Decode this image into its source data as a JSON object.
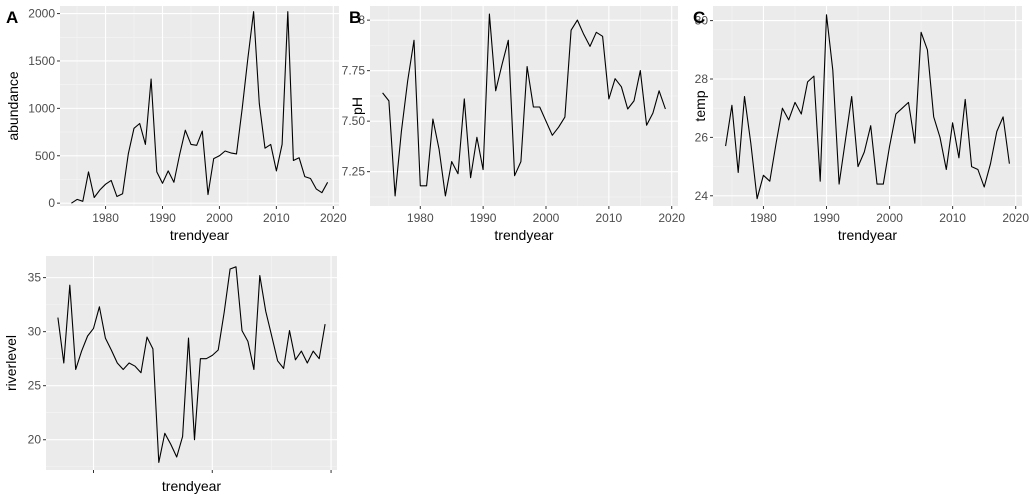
{
  "colors": {
    "panel_bg": "#ebebeb",
    "grid_major": "#ffffff",
    "grid_minor": "#f5f5f5",
    "line": "#000000",
    "tick": "#333333"
  },
  "chart_data": [
    {
      "type": "line",
      "tag": "A",
      "xlabel": "trendyear",
      "ylabel": "abundance",
      "xlim": [
        1972,
        2021
      ],
      "ylim": [
        -30,
        2080
      ],
      "grid": true,
      "xticks": [
        1980,
        1990,
        2000,
        2010,
        2020
      ],
      "yticks": [
        0,
        500,
        1000,
        1500,
        2000
      ],
      "x": [
        1974,
        1975,
        1976,
        1977,
        1978,
        1979,
        1980,
        1981,
        1982,
        1983,
        1984,
        1985,
        1986,
        1987,
        1988,
        1989,
        1990,
        1991,
        1992,
        1993,
        1994,
        1995,
        1996,
        1997,
        1998,
        1999,
        2000,
        2001,
        2002,
        2003,
        2004,
        2005,
        2006,
        2007,
        2008,
        2009,
        2010,
        2011,
        2012,
        2013,
        2014,
        2015,
        2016,
        2017,
        2018,
        2019
      ],
      "y": [
        0,
        40,
        20,
        330,
        60,
        140,
        200,
        240,
        70,
        100,
        520,
        790,
        840,
        620,
        1310,
        330,
        210,
        340,
        220,
        510,
        770,
        620,
        610,
        760,
        90,
        470,
        500,
        550,
        530,
        520,
        1000,
        1530,
        2020,
        1050,
        580,
        620,
        340,
        620,
        2020,
        450,
        480,
        280,
        260,
        150,
        110,
        220
      ]
    },
    {
      "type": "line",
      "tag": "B",
      "xlabel": "trendyear",
      "ylabel": "pH",
      "xlim": [
        1972,
        2021
      ],
      "ylim": [
        7.08,
        8.07
      ],
      "grid": true,
      "xticks": [
        1980,
        1990,
        2000,
        2010,
        2020
      ],
      "yticks": [
        7.25,
        7.5,
        7.75,
        8.0
      ],
      "x": [
        1974,
        1975,
        1976,
        1977,
        1978,
        1979,
        1980,
        1981,
        1982,
        1983,
        1984,
        1985,
        1986,
        1987,
        1988,
        1989,
        1990,
        1991,
        1992,
        1993,
        1994,
        1995,
        1996,
        1997,
        1998,
        1999,
        2000,
        2001,
        2002,
        2003,
        2004,
        2005,
        2006,
        2007,
        2008,
        2009,
        2010,
        2011,
        2012,
        2013,
        2014,
        2015,
        2016,
        2017,
        2018,
        2019
      ],
      "y": [
        7.64,
        7.6,
        7.13,
        7.45,
        7.7,
        7.9,
        7.18,
        7.18,
        7.51,
        7.36,
        7.13,
        7.3,
        7.24,
        7.61,
        7.22,
        7.42,
        7.26,
        8.03,
        7.65,
        7.78,
        7.9,
        7.23,
        7.3,
        7.77,
        7.57,
        7.57,
        7.5,
        7.43,
        7.47,
        7.52,
        7.95,
        8.0,
        7.93,
        7.87,
        7.94,
        7.92,
        7.61,
        7.71,
        7.67,
        7.56,
        7.6,
        7.75,
        7.48,
        7.54,
        7.65,
        7.56
      ]
    },
    {
      "type": "line",
      "tag": "C",
      "xlabel": "trendyear",
      "ylabel": "temp",
      "xlim": [
        1972,
        2021
      ],
      "ylim": [
        23.65,
        30.5
      ],
      "grid": true,
      "xticks": [
        1980,
        1990,
        2000,
        2010,
        2020
      ],
      "yticks": [
        24,
        26,
        28,
        30
      ],
      "x": [
        1974,
        1975,
        1976,
        1977,
        1978,
        1979,
        1980,
        1981,
        1982,
        1983,
        1984,
        1985,
        1986,
        1987,
        1988,
        1989,
        1990,
        1991,
        1992,
        1993,
        1994,
        1995,
        1996,
        1997,
        1998,
        1999,
        2000,
        2001,
        2002,
        2003,
        2004,
        2005,
        2006,
        2007,
        2008,
        2009,
        2010,
        2011,
        2012,
        2013,
        2014,
        2015,
        2016,
        2017,
        2018,
        2019
      ],
      "y": [
        25.7,
        27.1,
        24.8,
        27.4,
        25.8,
        23.9,
        24.7,
        24.5,
        25.8,
        27.0,
        26.6,
        27.2,
        26.8,
        27.9,
        28.1,
        24.5,
        30.2,
        28.3,
        24.4,
        25.9,
        27.4,
        25.0,
        25.5,
        26.4,
        24.4,
        24.4,
        25.7,
        26.8,
        27.0,
        27.2,
        25.8,
        29.6,
        29.0,
        26.7,
        26.0,
        24.9,
        26.5,
        25.3,
        27.3,
        25.0,
        24.9,
        24.3,
        25.1,
        26.2,
        26.7,
        25.1
      ]
    },
    {
      "type": "line",
      "tag": "",
      "xlabel": "trendyear",
      "ylabel": "riverlevel",
      "xlim": [
        1972,
        2021
      ],
      "ylim": [
        17.2,
        37.0
      ],
      "grid": true,
      "xticks": [
        1980,
        2000,
        2020
      ],
      "yticks": [
        20,
        25,
        30,
        35
      ],
      "x": [
        1974,
        1975,
        1976,
        1977,
        1978,
        1979,
        1980,
        1981,
        1982,
        1983,
        1984,
        1985,
        1986,
        1987,
        1988,
        1989,
        1990,
        1991,
        1992,
        1993,
        1994,
        1995,
        1996,
        1997,
        1998,
        1999,
        2000,
        2001,
        2002,
        2003,
        2004,
        2005,
        2006,
        2007,
        2008,
        2009,
        2010,
        2011,
        2012,
        2013,
        2014,
        2015,
        2016,
        2017,
        2018,
        2019
      ],
      "y": [
        31.3,
        27.1,
        34.3,
        26.5,
        28.2,
        29.6,
        30.3,
        32.3,
        29.4,
        28.3,
        27.1,
        26.5,
        27.1,
        26.8,
        26.2,
        29.5,
        28.4,
        17.9,
        20.6,
        19.6,
        18.4,
        20.3,
        29.4,
        20.0,
        27.5,
        27.5,
        27.8,
        28.3,
        31.8,
        35.8,
        36.0,
        30.1,
        29.1,
        26.5,
        35.2,
        31.9,
        29.6,
        27.3,
        26.6,
        30.1,
        27.4,
        28.2,
        27.1,
        28.2,
        27.5,
        30.7
      ]
    }
  ]
}
